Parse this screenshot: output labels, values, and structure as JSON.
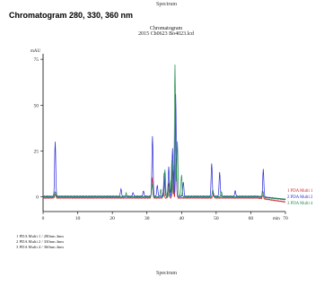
{
  "page": {
    "header": "Spectrum",
    "footer": "Spectrum"
  },
  "chart_data": {
    "type": "line",
    "heading": "Chromatogram 280, 330, 360 nm",
    "title_lines": [
      "Chromatogram",
      "2015 Ch0623 Bo4023.lcd"
    ],
    "xlabel": "min",
    "ylabel": "mAU",
    "xlim": [
      0,
      70
    ],
    "ylim": [
      -8,
      78
    ],
    "x_ticks": [
      0,
      10,
      20,
      30,
      40,
      50,
      60,
      70
    ],
    "y_ticks": [
      0,
      25,
      50,
      75
    ],
    "grid": false,
    "colors": {
      "ch1": "#d0202a",
      "ch2": "#2a2ad8",
      "ch3": "#1b8a4a"
    },
    "series": [
      {
        "name": "1 PDA Multi 1",
        "color": "#d0202a",
        "peaks": [
          [
            3.5,
            2.0
          ],
          [
            31.5,
            11.0
          ],
          [
            34.8,
            5.0
          ],
          [
            36.2,
            8.0
          ],
          [
            37.5,
            15.0
          ],
          [
            38.4,
            22.0
          ],
          [
            49.2,
            2.5
          ],
          [
            63.5,
            2.0
          ]
        ]
      },
      {
        "name": "2 PDA Multi 2",
        "color": "#2a2ad8",
        "peaks": [
          [
            3.5,
            30.0
          ],
          [
            22.5,
            4.0
          ],
          [
            26.0,
            2.0
          ],
          [
            29.0,
            3.0
          ],
          [
            31.6,
            33.0
          ],
          [
            33.0,
            6.0
          ],
          [
            35.0,
            13.0
          ],
          [
            36.3,
            16.0
          ],
          [
            37.4,
            26.0
          ],
          [
            38.3,
            56.0
          ],
          [
            40.5,
            8.0
          ],
          [
            48.7,
            18.0
          ],
          [
            51.0,
            13.0
          ],
          [
            55.5,
            3.0
          ],
          [
            63.6,
            15.0
          ]
        ]
      },
      {
        "name": "3 PDA Multi 4",
        "color": "#1b8a4a",
        "peaks": [
          [
            3.5,
            3.0
          ],
          [
            24.0,
            2.0
          ],
          [
            31.5,
            7.0
          ],
          [
            34.0,
            4.0
          ],
          [
            35.2,
            15.0
          ],
          [
            36.5,
            9.0
          ],
          [
            37.2,
            20.0
          ],
          [
            38.1,
            72.0
          ],
          [
            38.8,
            30.0
          ],
          [
            40.0,
            12.0
          ],
          [
            49.0,
            4.0
          ],
          [
            51.5,
            3.0
          ],
          [
            63.5,
            3.0
          ]
        ]
      }
    ],
    "legend": [
      "1   PDA Multi 1 / 280nm 4nm",
      "2   PDA Multi 2 / 330nm 4nm",
      "3   PDA Multi 4 / 360nm 4nm"
    ]
  }
}
